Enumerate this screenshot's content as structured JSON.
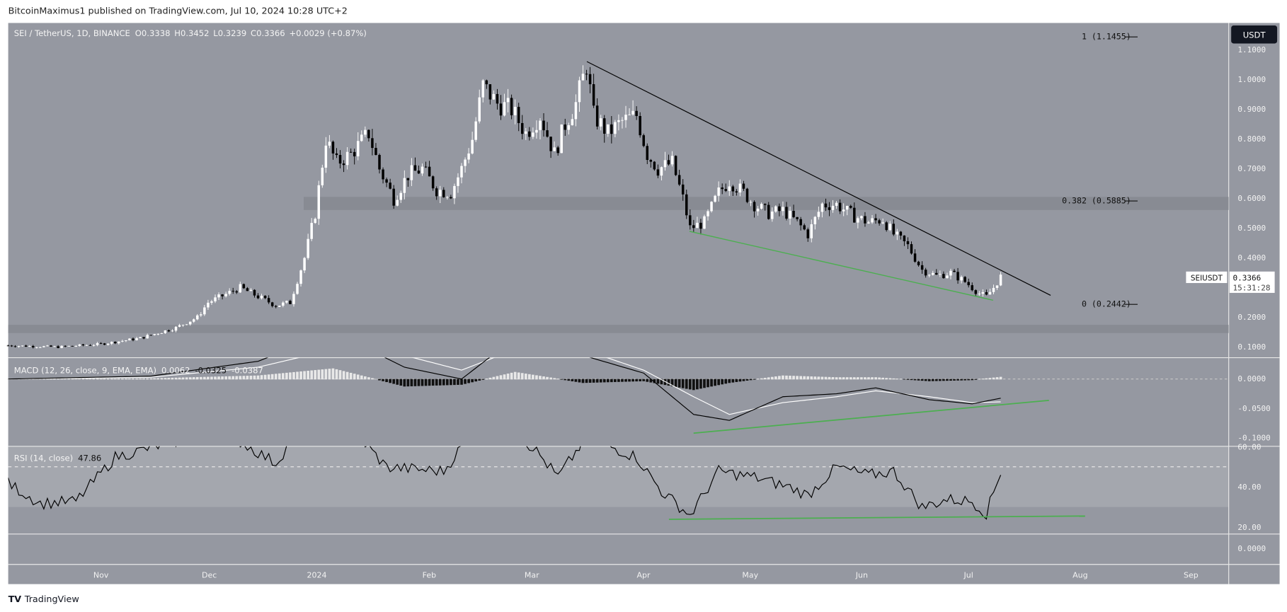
{
  "header": {
    "published": "BitcoinMaximus1 published on TradingView.com, Jul 10, 2024 10:28 UTC+2"
  },
  "footer": {
    "brand": "TradingView"
  },
  "legend": {
    "symbol": "SEI / TetherUS, 1D, BINANCE",
    "o_label": "O",
    "o": "0.3338",
    "h_label": "H",
    "h": "0.3452",
    "l_label": "L",
    "l": "0.3239",
    "c_label": "C",
    "c": "0.3366",
    "change": "+0.0029 (+0.87%)"
  },
  "currency_button": "USDT",
  "price_label": {
    "symbol": "SEIUSDT",
    "price": "0.3366",
    "countdown": "15:31:28"
  },
  "fib_levels": [
    {
      "label": "1 (1.1455)",
      "value": 1.1455
    },
    {
      "label": "0.382 (0.5885)",
      "value": 0.5885
    },
    {
      "label": "0 (0.2442)",
      "value": 0.2442
    }
  ],
  "colors": {
    "background": "#9598a1",
    "rsi_band": "#a4a7ae",
    "trendline": "#000000",
    "support": "#4caf50",
    "macd_line": "#000000",
    "signal_line": "#ffffff"
  },
  "chart_data": [
    {
      "type": "candlestick",
      "title": "SEI / TetherUS, 1D, BINANCE",
      "x_ticks": [
        "Nov",
        "Dec",
        "2024",
        "Feb",
        "Mar",
        "Apr",
        "May",
        "Jun",
        "Jul",
        "Aug",
        "Sep"
      ],
      "y_ticks": [
        "1.1000",
        "1.0000",
        "0.9000",
        "0.8000",
        "0.7000",
        "0.6000",
        "0.5000",
        "0.4000",
        "0.2000",
        "0.1000"
      ],
      "ylim": [
        0.05,
        1.2
      ],
      "closes": [
        [
          "2023-10-06",
          0.105
        ],
        [
          "2023-10-20",
          0.1
        ],
        [
          "2023-11-01",
          0.11
        ],
        [
          "2023-11-12",
          0.13
        ],
        [
          "2023-11-22",
          0.165
        ],
        [
          "2023-11-28",
          0.2
        ],
        [
          "2023-12-01",
          0.25
        ],
        [
          "2023-12-10",
          0.3
        ],
        [
          "2023-12-20",
          0.24
        ],
        [
          "2023-12-24",
          0.25
        ],
        [
          "2023-12-28",
          0.4
        ],
        [
          "2023-12-31",
          0.55
        ],
        [
          "2024-01-03",
          0.8
        ],
        [
          "2024-01-06",
          0.72
        ],
        [
          "2024-01-10",
          0.75
        ],
        [
          "2024-01-15",
          0.82
        ],
        [
          "2024-01-18",
          0.7
        ],
        [
          "2024-01-22",
          0.6
        ],
        [
          "2024-01-26",
          0.68
        ],
        [
          "2024-01-30",
          0.7
        ],
        [
          "2024-02-03",
          0.63
        ],
        [
          "2024-02-07",
          0.62
        ],
        [
          "2024-02-10",
          0.7
        ],
        [
          "2024-02-13",
          0.8
        ],
        [
          "2024-02-16",
          0.98
        ],
        [
          "2024-02-20",
          0.92
        ],
        [
          "2024-02-24",
          0.9
        ],
        [
          "2024-02-28",
          0.82
        ],
        [
          "2024-03-03",
          0.88
        ],
        [
          "2024-03-07",
          0.75
        ],
        [
          "2024-03-10",
          0.85
        ],
        [
          "2024-03-13",
          0.92
        ],
        [
          "2024-03-16",
          1.05
        ],
        [
          "2024-03-18",
          0.88
        ],
        [
          "2024-03-22",
          0.82
        ],
        [
          "2024-03-26",
          0.86
        ],
        [
          "2024-03-30",
          0.88
        ],
        [
          "2024-04-02",
          0.75
        ],
        [
          "2024-04-05",
          0.7
        ],
        [
          "2024-04-09",
          0.72
        ],
        [
          "2024-04-12",
          0.6
        ],
        [
          "2024-04-14",
          0.5
        ],
        [
          "2024-04-18",
          0.52
        ],
        [
          "2024-04-22",
          0.62
        ],
        [
          "2024-04-25",
          0.66
        ],
        [
          "2024-04-29",
          0.62
        ],
        [
          "2024-05-02",
          0.58
        ],
        [
          "2024-05-06",
          0.55
        ],
        [
          "2024-05-10",
          0.56
        ],
        [
          "2024-05-14",
          0.52
        ],
        [
          "2024-05-17",
          0.48
        ],
        [
          "2024-05-21",
          0.58
        ],
        [
          "2024-05-25",
          0.58
        ],
        [
          "2024-05-30",
          0.54
        ],
        [
          "2024-06-03",
          0.52
        ],
        [
          "2024-06-07",
          0.53
        ],
        [
          "2024-06-10",
          0.48
        ],
        [
          "2024-06-14",
          0.44
        ],
        [
          "2024-06-18",
          0.36
        ],
        [
          "2024-06-22",
          0.34
        ],
        [
          "2024-06-26",
          0.35
        ],
        [
          "2024-06-30",
          0.32
        ],
        [
          "2024-07-04",
          0.28
        ],
        [
          "2024-07-06",
          0.27
        ],
        [
          "2024-07-08",
          0.3
        ],
        [
          "2024-07-10",
          0.3366
        ]
      ]
    },
    {
      "type": "line",
      "title": "MACD (12, 26, close, 9, EMA, EMA)",
      "values_label": [
        "0.0062",
        "-0.0325",
        "-0.0387"
      ],
      "y_ticks": [
        "0.0000",
        "-0.0500",
        "-0.1000"
      ],
      "ylim": [
        -0.105,
        0.04
      ],
      "macd": [
        [
          "2023-10-06",
          0
        ],
        [
          "2023-11-15",
          0.005
        ],
        [
          "2023-12-15",
          0.03
        ],
        [
          "2024-01-05",
          0.08
        ],
        [
          "2024-01-25",
          0.02
        ],
        [
          "2024-02-10",
          0
        ],
        [
          "2024-02-25",
          0.07
        ],
        [
          "2024-03-15",
          0.04
        ],
        [
          "2024-04-01",
          0.01
        ],
        [
          "2024-04-15",
          -0.06
        ],
        [
          "2024-04-25",
          -0.07
        ],
        [
          "2024-05-10",
          -0.03
        ],
        [
          "2024-05-25",
          -0.025
        ],
        [
          "2024-06-05",
          -0.015
        ],
        [
          "2024-06-20",
          -0.035
        ],
        [
          "2024-07-02",
          -0.042
        ],
        [
          "2024-07-10",
          -0.0325
        ]
      ],
      "signal": [
        [
          "2023-10-06",
          0
        ],
        [
          "2023-11-15",
          0.003
        ],
        [
          "2023-12-15",
          0.02
        ],
        [
          "2024-01-05",
          0.05
        ],
        [
          "2024-01-25",
          0.04
        ],
        [
          "2024-02-10",
          0.015
        ],
        [
          "2024-02-25",
          0.05
        ],
        [
          "2024-03-15",
          0.05
        ],
        [
          "2024-04-01",
          0.015
        ],
        [
          "2024-04-15",
          -0.03
        ],
        [
          "2024-04-25",
          -0.06
        ],
        [
          "2024-05-10",
          -0.04
        ],
        [
          "2024-05-25",
          -0.03
        ],
        [
          "2024-06-05",
          -0.02
        ],
        [
          "2024-06-20",
          -0.03
        ],
        [
          "2024-07-02",
          -0.04
        ],
        [
          "2024-07-10",
          -0.0387
        ]
      ]
    },
    {
      "type": "line",
      "title": "RSI (14, close)",
      "value_label": "47.86",
      "y_ticks": [
        "60.00",
        "40.00",
        "20.00"
      ],
      "band": [
        30,
        70
      ],
      "rsi": [
        [
          "2023-10-06",
          42
        ],
        [
          "2023-10-15",
          32
        ],
        [
          "2023-10-25",
          33
        ],
        [
          "2023-11-05",
          55
        ],
        [
          "2023-11-20",
          62
        ],
        [
          "2023-12-05",
          68
        ],
        [
          "2023-12-20",
          52
        ],
        [
          "2024-01-02",
          85
        ],
        [
          "2024-01-20",
          50
        ],
        [
          "2024-02-05",
          48
        ],
        [
          "2024-02-16",
          75
        ],
        [
          "2024-03-01",
          60
        ],
        [
          "2024-03-08",
          45
        ],
        [
          "2024-03-16",
          65
        ],
        [
          "2024-03-30",
          55
        ],
        [
          "2024-04-06",
          38
        ],
        [
          "2024-04-14",
          26
        ],
        [
          "2024-04-22",
          48
        ],
        [
          "2024-05-02",
          45
        ],
        [
          "2024-05-12",
          40
        ],
        [
          "2024-05-17",
          36
        ],
        [
          "2024-05-25",
          50
        ],
        [
          "2024-06-03",
          46
        ],
        [
          "2024-06-10",
          48
        ],
        [
          "2024-06-18",
          30
        ],
        [
          "2024-06-25",
          34
        ],
        [
          "2024-07-02",
          33
        ],
        [
          "2024-07-06",
          27
        ],
        [
          "2024-07-10",
          47.86
        ]
      ]
    }
  ]
}
